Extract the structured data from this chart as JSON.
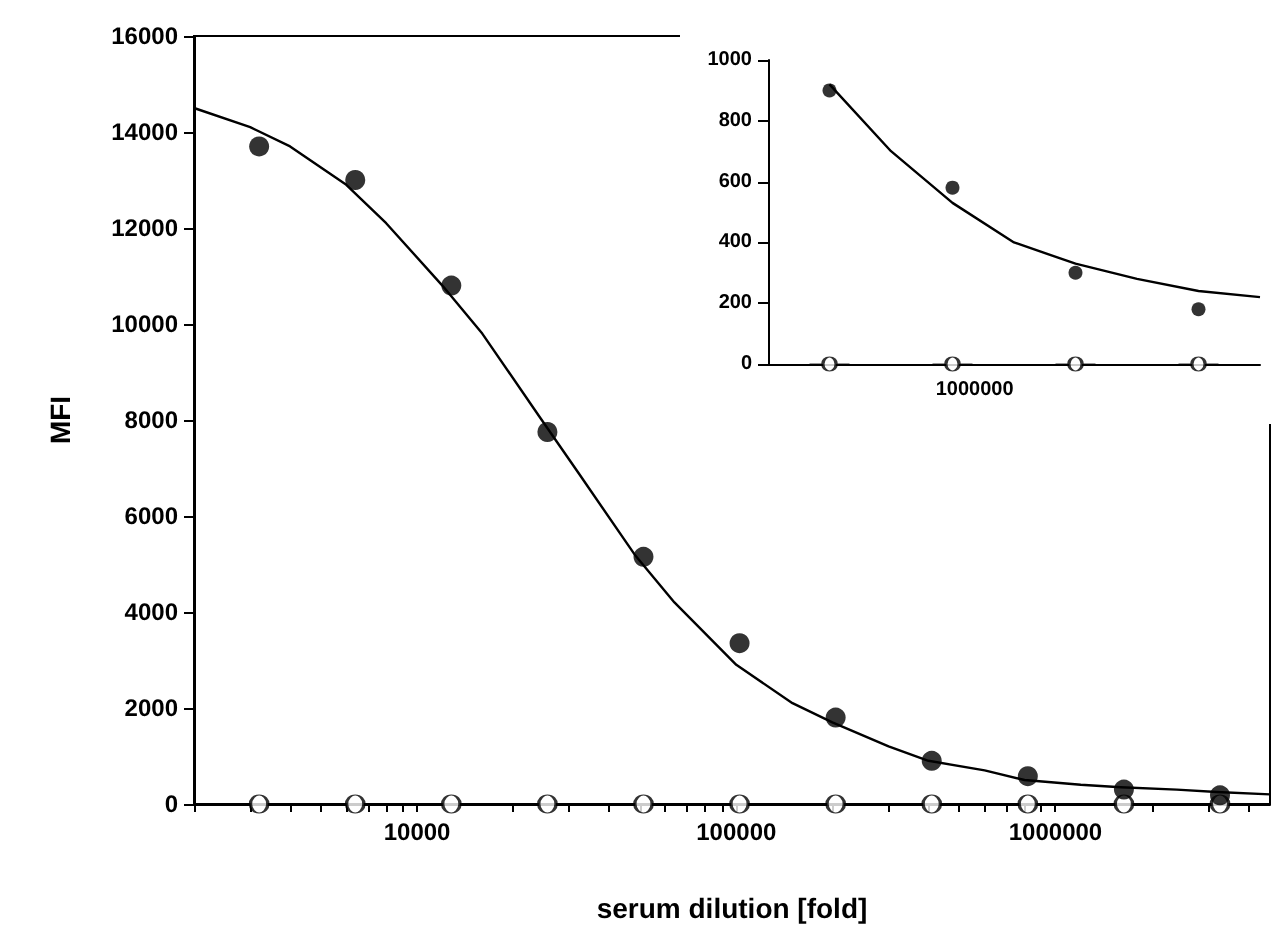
{
  "chart_data": [
    {
      "type": "scatter",
      "xlabel": "serum dilution [fold]",
      "ylabel": "MFI",
      "log": "x",
      "grid": false,
      "x": [
        3200,
        6400,
        12800,
        25600,
        51200,
        102400,
        204800,
        409600,
        819200,
        1638400,
        3276800
      ],
      "xlim": [
        2000,
        4700000
      ],
      "xticks": [
        {
          "value": 2000,
          "label": null
        },
        {
          "value": 3000,
          "label": null
        },
        {
          "value": 4000,
          "label": null
        },
        {
          "value": 5000,
          "label": null
        },
        {
          "value": 6000,
          "label": null
        },
        {
          "value": 7000,
          "label": null
        },
        {
          "value": 8000,
          "label": null
        },
        {
          "value": 9000,
          "label": null
        },
        10000,
        {
          "value": 20000,
          "label": null
        },
        {
          "value": 30000,
          "label": null
        },
        {
          "value": 40000,
          "label": null
        },
        {
          "value": 50000,
          "label": null
        },
        {
          "value": 60000,
          "label": null
        },
        {
          "value": 70000,
          "label": null
        },
        {
          "value": 80000,
          "label": null
        },
        {
          "value": 90000,
          "label": null
        },
        100000,
        {
          "value": 200000,
          "label": null
        },
        {
          "value": 300000,
          "label": null
        },
        {
          "value": 400000,
          "label": null
        },
        {
          "value": 500000,
          "label": null
        },
        {
          "value": 600000,
          "label": null
        },
        {
          "value": 700000,
          "label": null
        },
        {
          "value": 800000,
          "label": null
        },
        {
          "value": 900000,
          "label": null
        },
        1000000,
        {
          "value": 2000000,
          "label": null
        },
        {
          "value": 3000000,
          "label": null
        },
        {
          "value": 4000000,
          "label": null
        }
      ],
      "ylim": [
        0,
        16000
      ],
      "yticks": [
        0,
        2000,
        4000,
        6000,
        8000,
        10000,
        12000,
        14000,
        16000
      ],
      "series": [
        {
          "type": "scatter",
          "marker": "circle",
          "color": "#000000",
          "values": [
            13700,
            13000,
            10800,
            7750,
            5150,
            3350,
            1800,
            900,
            580,
            300,
            180
          ]
        },
        {
          "type": "scatter",
          "marker": "circle",
          "color": "#ffffff",
          "values": [
            0,
            0,
            0,
            0,
            0,
            0,
            0,
            0,
            0,
            0,
            0
          ]
        },
        {
          "type": "line",
          "marker": "none",
          "line_style": "solid",
          "color": "#000000",
          "x": [
            2000,
            3000,
            4000,
            6000,
            8000,
            12000,
            16000,
            24000,
            32000,
            48000,
            64000,
            100000,
            150000,
            200000,
            300000,
            400000,
            600000,
            800000,
            1200000,
            1600000,
            2400000,
            3200000,
            4700000
          ],
          "values": [
            14500,
            14100,
            13700,
            12900,
            12100,
            10800,
            9800,
            8100,
            6900,
            5200,
            4200,
            2900,
            2100,
            1700,
            1200,
            900,
            700,
            500,
            400,
            350,
            300,
            250,
            200
          ]
        }
      ]
    },
    {
      "type": "scatter",
      "grid": false,
      "annotations": [
        "1000000"
      ],
      "categories": [
        null,
        null,
        null,
        null,
        null,
        null,
        null,
        null,
        null
      ],
      "ylim": [
        0,
        1000
      ],
      "yticks": [
        0,
        200,
        400,
        600,
        800,
        1000
      ],
      "series": [
        {
          "type": "scatter",
          "marker": "circle",
          "color": "#000000",
          "values": [
            null,
            900,
            null,
            580,
            null,
            300,
            null,
            180,
            null
          ]
        },
        {
          "type": "scatter",
          "marker": "circle",
          "color": "#ffffff",
          "values": [
            null,
            0,
            null,
            0,
            null,
            0,
            null,
            0,
            null
          ]
        },
        {
          "type": "line",
          "marker": "none",
          "line_style": "solid",
          "color": "#000000",
          "values": [
            null,
            920,
            700,
            530,
            400,
            330,
            280,
            240,
            220
          ]
        }
      ]
    }
  ]
}
